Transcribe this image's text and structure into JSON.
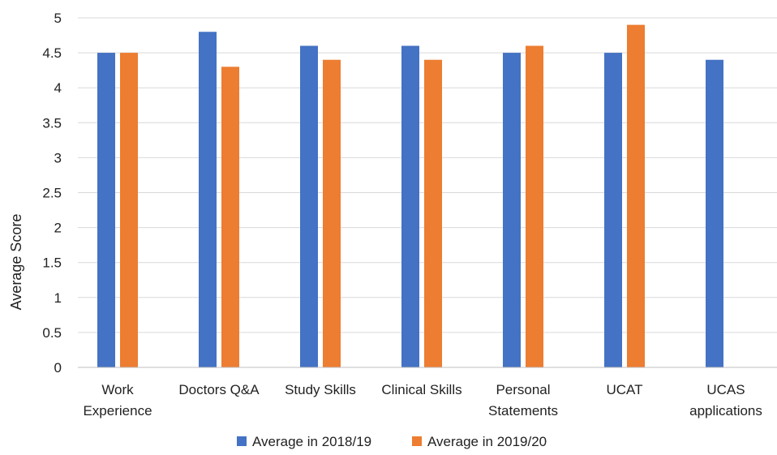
{
  "chart_data": {
    "type": "bar",
    "title": "",
    "xlabel": "",
    "ylabel": "Average Score",
    "ylim": [
      0,
      5
    ],
    "ytick_step": 0.5,
    "yticks": [
      "0",
      "0.5",
      "1",
      "1.5",
      "2",
      "2.5",
      "3",
      "3.5",
      "4",
      "4.5",
      "5"
    ],
    "grid": true,
    "legend_position": "bottom",
    "categories": [
      [
        "Work",
        "Experience"
      ],
      [
        "Doctors Q&A"
      ],
      [
        "Study Skills"
      ],
      [
        "Clinical Skills"
      ],
      [
        "Personal",
        "Statements"
      ],
      [
        "UCAT"
      ],
      [
        "UCAS",
        "applications"
      ]
    ],
    "series": [
      {
        "name": "Average in 2018/19",
        "color": "#4472C4",
        "values": [
          4.5,
          4.8,
          4.6,
          4.6,
          4.5,
          4.5,
          4.4
        ]
      },
      {
        "name": "Average in 2019/20",
        "color": "#ED7D31",
        "values": [
          4.5,
          4.3,
          4.4,
          4.4,
          4.6,
          4.9,
          null
        ]
      }
    ]
  }
}
